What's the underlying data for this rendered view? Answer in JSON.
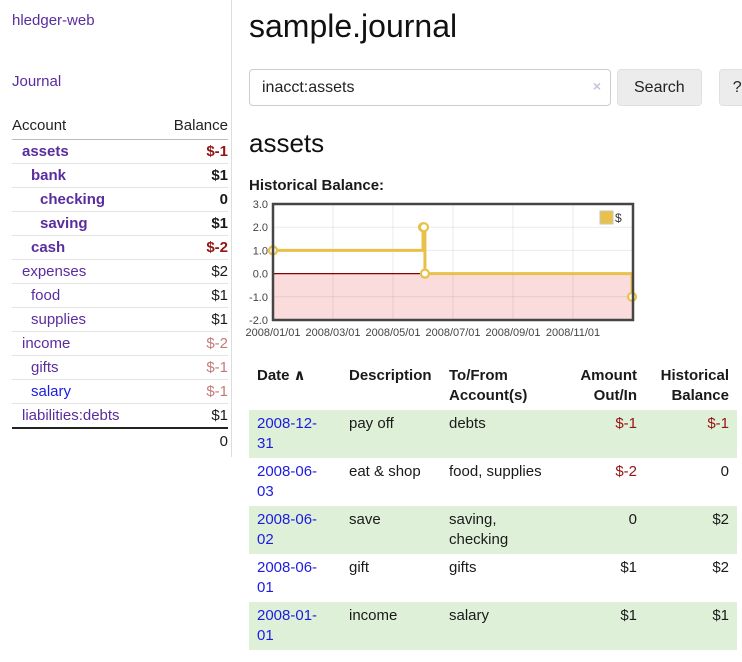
{
  "app": {
    "title": "hledger-web"
  },
  "sidebar": {
    "journal_label": "Journal",
    "accounts": {
      "header_account": "Account",
      "header_balance": "Balance",
      "rows": [
        {
          "name": "assets",
          "balance": "$-1",
          "level": 1
        },
        {
          "name": "bank",
          "balance": "$1",
          "level": 2
        },
        {
          "name": "checking",
          "balance": "0",
          "level": 3
        },
        {
          "name": "saving",
          "balance": "$1",
          "level": 3
        },
        {
          "name": "cash",
          "balance": "$-2",
          "level": 2
        },
        {
          "name": "expenses",
          "balance": "$2",
          "level": 1
        },
        {
          "name": "food",
          "balance": "$1",
          "level": 2
        },
        {
          "name": "supplies",
          "balance": "$1",
          "level": 2
        },
        {
          "name": "income",
          "balance": "$-2",
          "level": 1
        },
        {
          "name": "gifts",
          "balance": "$-1",
          "level": 2
        },
        {
          "name": "salary",
          "balance": "$-1",
          "level": 2
        },
        {
          "name": "liabilities:debts",
          "balance": "$1",
          "level": 1
        }
      ],
      "total": "0"
    }
  },
  "main": {
    "title": "sample.journal",
    "search": {
      "value": "inacct:assets",
      "clear_icon": "×",
      "button_label": "Search",
      "help_label": "?"
    },
    "account_title": "assets",
    "chart_label": "Historical Balance:"
  },
  "register": {
    "sort_icon": "∧",
    "headers": {
      "date": "Date",
      "description": "Description",
      "tofrom": "To/From Account(s)",
      "amount": "Amount Out/In",
      "balance": "Historical Balance"
    },
    "rows": [
      {
        "date": "2008-12-31",
        "description": "pay off",
        "accounts": "debts",
        "amount": "$-1",
        "balance": "$-1"
      },
      {
        "date": "2008-06-03",
        "description": "eat & shop",
        "accounts": "food, supplies",
        "amount": "$-2",
        "balance": "0"
      },
      {
        "date": "2008-06-02",
        "description": "save",
        "accounts": "saving, checking",
        "amount": "0",
        "balance": "$2"
      },
      {
        "date": "2008-06-01",
        "description": "gift",
        "accounts": "gifts",
        "amount": "$1",
        "balance": "$2"
      },
      {
        "date": "2008-01-01",
        "description": "income",
        "accounts": "salary",
        "amount": "$1",
        "balance": "$1"
      }
    ]
  },
  "chart_data": {
    "type": "line",
    "title": "Historical Balance",
    "series": [
      {
        "name": "$",
        "color": "#e9c14a",
        "step": true,
        "points": [
          {
            "date": "2008-01-01",
            "value": 1
          },
          {
            "date": "2008-06-01",
            "value": 2
          },
          {
            "date": "2008-06-02",
            "value": 2
          },
          {
            "date": "2008-06-03",
            "value": 0
          },
          {
            "date": "2008-12-31",
            "value": -1
          }
        ]
      }
    ],
    "x_ticks": [
      "2008/01/01",
      "2008/03/01",
      "2008/05/01",
      "2008/07/01",
      "2008/09/01",
      "2008/11/01"
    ],
    "y_ticks": [
      3,
      2,
      1,
      0,
      -1,
      -2
    ],
    "x_range": [
      "2008-01-01",
      "2009-01-01"
    ],
    "ylim": [
      -2,
      3
    ],
    "grid": true,
    "legend": {
      "label": "$",
      "position": "top-right"
    },
    "negative_region_color": "#fadcdc",
    "zero_line_color": "#8b0000",
    "border_color": "#454545"
  }
}
